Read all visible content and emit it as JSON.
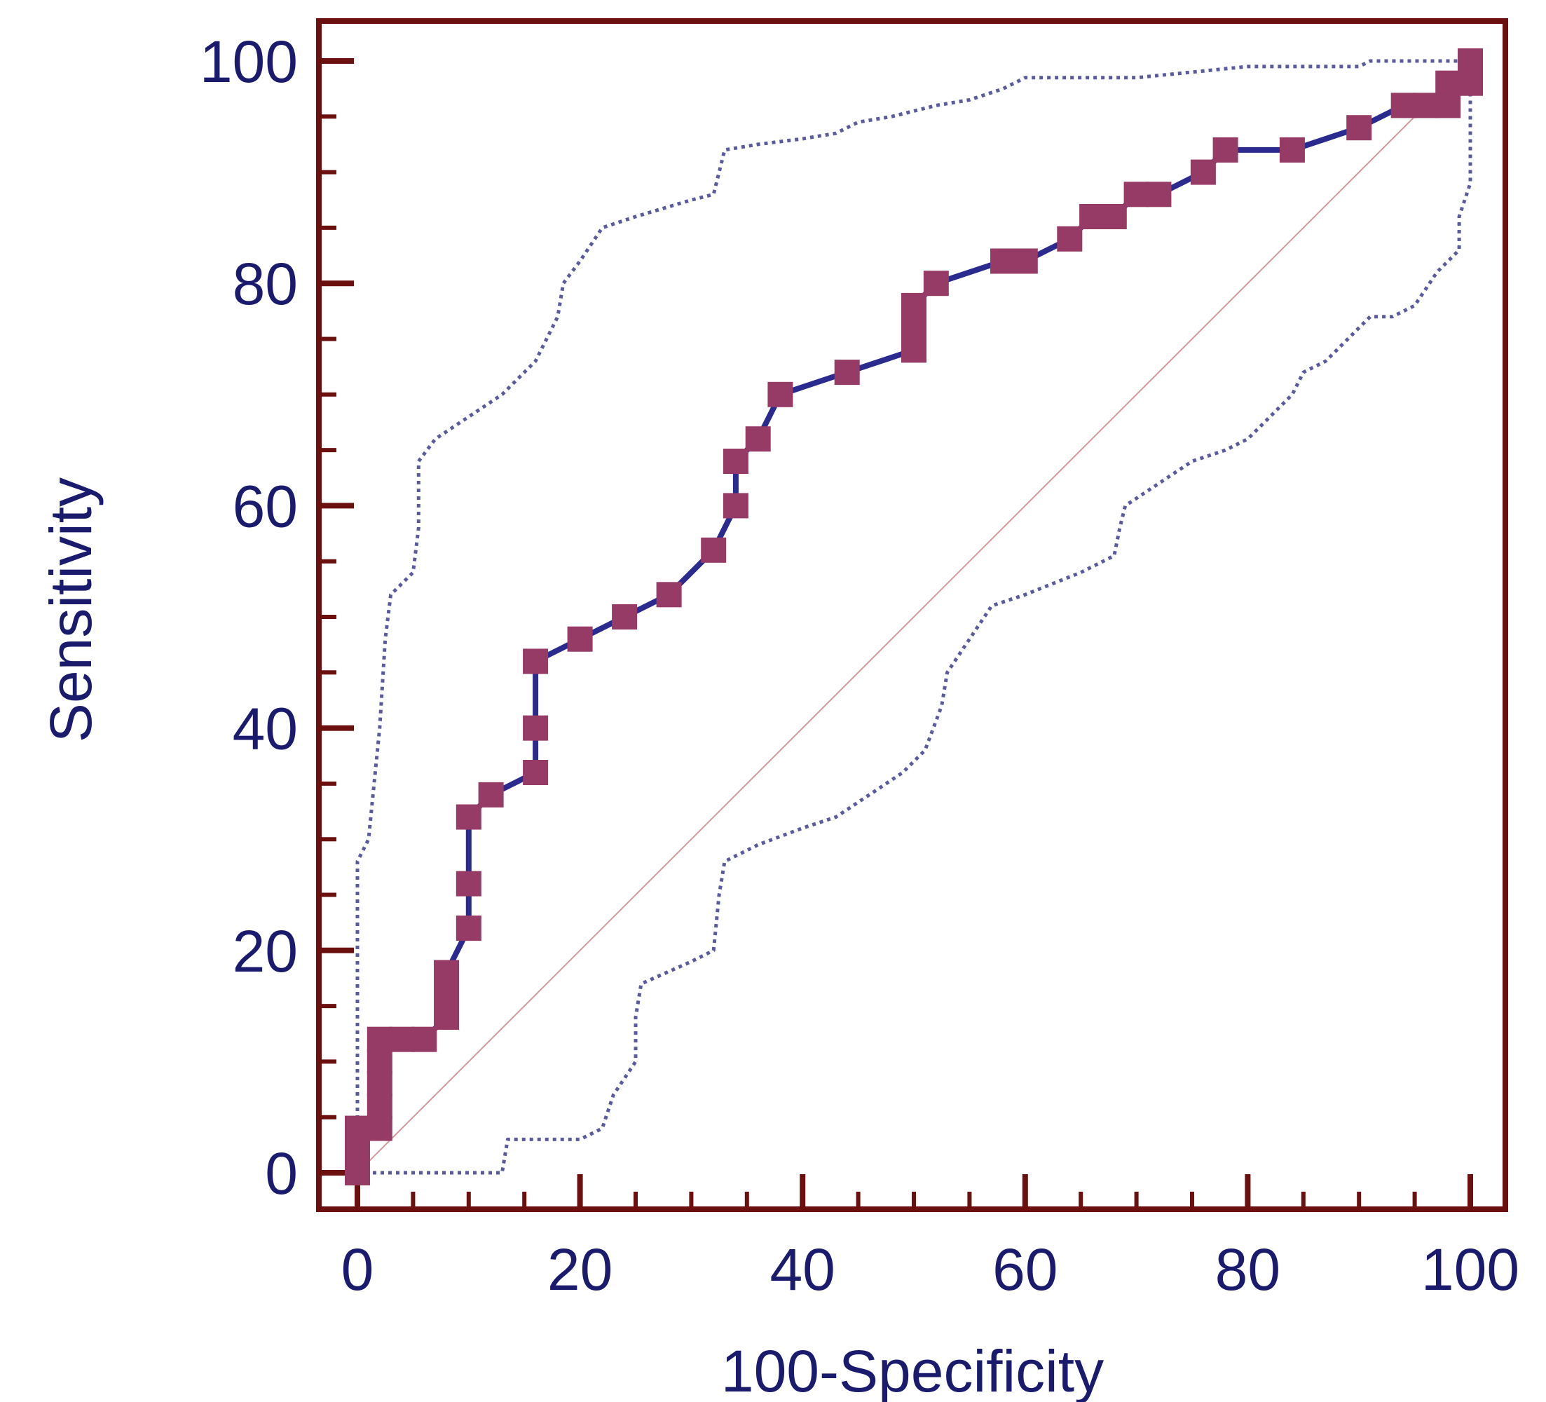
{
  "chart_data": {
    "type": "line",
    "title": "",
    "xlabel": "100-Specificity",
    "ylabel": "Sensitivity",
    "xlim": [
      0,
      100
    ],
    "ylim": [
      0,
      100
    ],
    "xticks": [
      0,
      20,
      40,
      60,
      80,
      100
    ],
    "yticks": [
      0,
      20,
      40,
      60,
      80,
      100
    ],
    "grid": false,
    "legend": "none",
    "colors": {
      "frame": "#6b0f0f",
      "roc_line": "#2b2b8f",
      "roc_marker": "#963a66",
      "ci_line": "#5a5a9e",
      "diagonal": "#d49a9a",
      "text": "#1b1b6e"
    },
    "series": [
      {
        "role": "roc",
        "points": [
          [
            0,
            0
          ],
          [
            0,
            2
          ],
          [
            0,
            4
          ],
          [
            2,
            4
          ],
          [
            2,
            6
          ],
          [
            2,
            8
          ],
          [
            2,
            10
          ],
          [
            2,
            12
          ],
          [
            4,
            12
          ],
          [
            6,
            12
          ],
          [
            8,
            14
          ],
          [
            8,
            16
          ],
          [
            8,
            18
          ],
          [
            10,
            22
          ],
          [
            10,
            26
          ],
          [
            10,
            32
          ],
          [
            12,
            34
          ],
          [
            16,
            36
          ],
          [
            16,
            40
          ],
          [
            16,
            46
          ],
          [
            20,
            48
          ],
          [
            24,
            50
          ],
          [
            28,
            52
          ],
          [
            32,
            56
          ],
          [
            34,
            60
          ],
          [
            34,
            64
          ],
          [
            36,
            66
          ],
          [
            38,
            70
          ],
          [
            44,
            72
          ],
          [
            50,
            74
          ],
          [
            50,
            76
          ],
          [
            50,
            78
          ],
          [
            52,
            80
          ],
          [
            58,
            82
          ],
          [
            60,
            82
          ],
          [
            64,
            84
          ],
          [
            66,
            86
          ],
          [
            68,
            86
          ],
          [
            70,
            88
          ],
          [
            72,
            88
          ],
          [
            76,
            90
          ],
          [
            78,
            92
          ],
          [
            84,
            92
          ],
          [
            90,
            94
          ],
          [
            94,
            96
          ],
          [
            96,
            96
          ],
          [
            98,
            96
          ],
          [
            98,
            98
          ],
          [
            100,
            98
          ],
          [
            100,
            100
          ]
        ]
      },
      {
        "role": "ci-upper",
        "points": [
          [
            0,
            0
          ],
          [
            0,
            10
          ],
          [
            0,
            28
          ],
          [
            1,
            30
          ],
          [
            1.5,
            35
          ],
          [
            2,
            40
          ],
          [
            2.5,
            48
          ],
          [
            3,
            52
          ],
          [
            5,
            54
          ],
          [
            5.5,
            58
          ],
          [
            5.5,
            64
          ],
          [
            7,
            66
          ],
          [
            10,
            68
          ],
          [
            13,
            70
          ],
          [
            16,
            73
          ],
          [
            18,
            77
          ],
          [
            18.5,
            80
          ],
          [
            20,
            82
          ],
          [
            22,
            85
          ],
          [
            25,
            86
          ],
          [
            30,
            87.5
          ],
          [
            32,
            88
          ],
          [
            32.5,
            90
          ],
          [
            33,
            92
          ],
          [
            36,
            92.5
          ],
          [
            40,
            93
          ],
          [
            43,
            93.5
          ],
          [
            45,
            94.5
          ],
          [
            48,
            95
          ],
          [
            50,
            95.5
          ],
          [
            52,
            96
          ],
          [
            55,
            96.5
          ],
          [
            58,
            97.5
          ],
          [
            60,
            98.5
          ],
          [
            70,
            98.5
          ],
          [
            80,
            99.5
          ],
          [
            90,
            99.5
          ],
          [
            91,
            100
          ],
          [
            100,
            100
          ]
        ]
      },
      {
        "role": "ci-lower",
        "points": [
          [
            0,
            0
          ],
          [
            13,
            0
          ],
          [
            13.5,
            3
          ],
          [
            20,
            3
          ],
          [
            22,
            4
          ],
          [
            23,
            7
          ],
          [
            25,
            10
          ],
          [
            25,
            14
          ],
          [
            25.5,
            17
          ],
          [
            30,
            19
          ],
          [
            32,
            20
          ],
          [
            32.5,
            25
          ],
          [
            33,
            28
          ],
          [
            36,
            29.5
          ],
          [
            40,
            31
          ],
          [
            43,
            32
          ],
          [
            46,
            34
          ],
          [
            49,
            36
          ],
          [
            51,
            38
          ],
          [
            52.5,
            42
          ],
          [
            53,
            45
          ],
          [
            55,
            48
          ],
          [
            57,
            51
          ],
          [
            60,
            52
          ],
          [
            65,
            54
          ],
          [
            68,
            55.5
          ],
          [
            68.5,
            58
          ],
          [
            69,
            60
          ],
          [
            72,
            62
          ],
          [
            75,
            64
          ],
          [
            78,
            65
          ],
          [
            80,
            66
          ],
          [
            82,
            68
          ],
          [
            84,
            70
          ],
          [
            85,
            72
          ],
          [
            87,
            73
          ],
          [
            88,
            74
          ],
          [
            90,
            76
          ],
          [
            91,
            77
          ],
          [
            93,
            77
          ],
          [
            95,
            78
          ],
          [
            97,
            81
          ],
          [
            99,
            83
          ],
          [
            99,
            86
          ],
          [
            100,
            89
          ],
          [
            100,
            92
          ],
          [
            100,
            100
          ]
        ]
      },
      {
        "role": "reference",
        "points": [
          [
            0,
            0
          ],
          [
            100,
            100
          ]
        ]
      }
    ]
  }
}
